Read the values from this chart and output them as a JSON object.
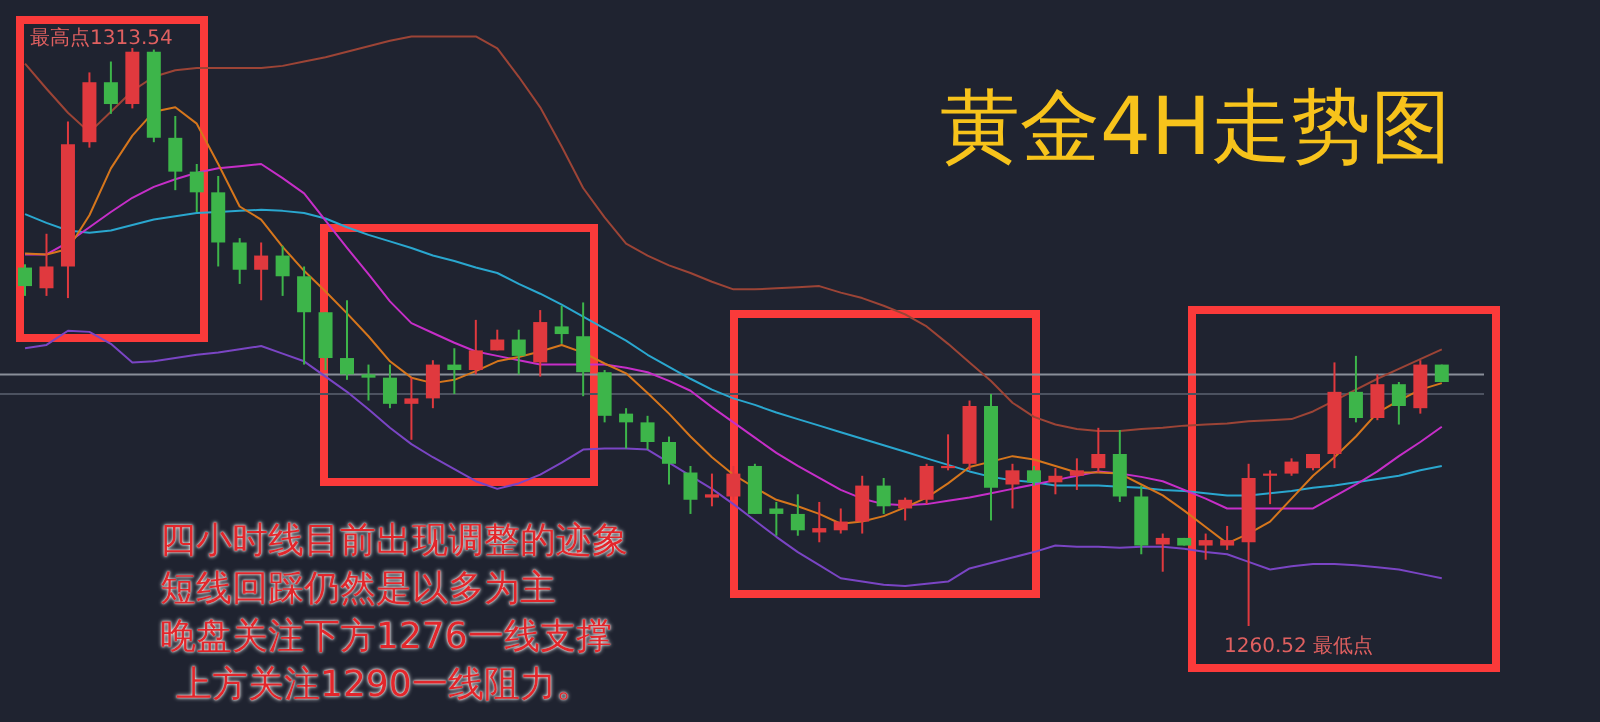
{
  "chart_data": {
    "type": "candlestick",
    "title": "黄金4H走势图",
    "categories": [
      null,
      null,
      null,
      null,
      null,
      null,
      null,
      null,
      null,
      null,
      null,
      null,
      null,
      null,
      null,
      null,
      null,
      null,
      null,
      null,
      null,
      null,
      null,
      null,
      null,
      null,
      null,
      null,
      null,
      null,
      null,
      null,
      null,
      null,
      null,
      null,
      null,
      null,
      null,
      null,
      null,
      null,
      null,
      null,
      null,
      null,
      null,
      null,
      null,
      null,
      null,
      null,
      null,
      null,
      null,
      null,
      null,
      null,
      null,
      null,
      null,
      null,
      null,
      null,
      null,
      null,
      null
    ],
    "tick_labels": false,
    "ohlc": [
      [
        1293.4,
        1293.7,
        1290.8,
        1291.7
      ],
      [
        1291.5,
        1296.5,
        1290.8,
        1293.5
      ],
      [
        1293.5,
        1306.8,
        1290.6,
        1304.7
      ],
      [
        1304.9,
        1311.3,
        1304.4,
        1310.4
      ],
      [
        1310.4,
        1312.3,
        1307.5,
        1308.4
      ],
      [
        1308.4,
        1313.54,
        1308.0,
        1313.2
      ],
      [
        1313.2,
        1313.4,
        1304.9,
        1305.3
      ],
      [
        1305.3,
        1307.3,
        1300.5,
        1302.2
      ],
      [
        1302.2,
        1302.9,
        1298.5,
        1300.3
      ],
      [
        1300.3,
        1301.8,
        1293.5,
        1295.7
      ],
      [
        1295.7,
        1296.1,
        1291.9,
        1293.2
      ],
      [
        1293.2,
        1295.7,
        1290.4,
        1294.5
      ],
      [
        1294.5,
        1295.4,
        1290.8,
        1292.6
      ],
      [
        1292.6,
        1293.5,
        1284.5,
        1289.3
      ],
      [
        1289.3,
        1289.3,
        1284.0,
        1285.1
      ],
      [
        1285.1,
        1290.4,
        1283.1,
        1283.6
      ],
      [
        1283.6,
        1284.5,
        1281.2,
        1283.3
      ],
      [
        1283.3,
        1284.5,
        1280.5,
        1280.9
      ],
      [
        1280.9,
        1283.3,
        1277.6,
        1281.4
      ],
      [
        1281.4,
        1284.9,
        1280.5,
        1284.5
      ],
      [
        1284.5,
        1286.0,
        1281.8,
        1284.0
      ],
      [
        1284.0,
        1288.6,
        1283.6,
        1285.8
      ],
      [
        1285.8,
        1287.7,
        1285.8,
        1286.8
      ],
      [
        1286.8,
        1287.7,
        1283.6,
        1285.3
      ],
      [
        1284.7,
        1289.5,
        1283.4,
        1288.4
      ],
      [
        1288.0,
        1289.9,
        1286.4,
        1287.3
      ],
      [
        1287.1,
        1290.2,
        1281.6,
        1283.8
      ],
      [
        1283.8,
        1284.0,
        1279.2,
        1279.8
      ],
      [
        1280.0,
        1280.5,
        1276.8,
        1279.2
      ],
      [
        1279.2,
        1279.8,
        1276.7,
        1277.4
      ],
      [
        1277.4,
        1277.9,
        1273.5,
        1275.4
      ],
      [
        1274.6,
        1275.2,
        1270.8,
        1272.1
      ],
      [
        1272.3,
        1274.5,
        1271.5,
        1272.6
      ],
      [
        1272.4,
        1275.2,
        1272.1,
        1274.5
      ],
      [
        1275.2,
        1275.4,
        1270.8,
        1270.8
      ],
      [
        1271.3,
        1271.9,
        1268.8,
        1270.8
      ],
      [
        1270.8,
        1272.6,
        1268.8,
        1269.3
      ],
      [
        1269.1,
        1271.9,
        1268.2,
        1269.5
      ],
      [
        1269.3,
        1271.3,
        1269.0,
        1270.1
      ],
      [
        1270.1,
        1274.3,
        1269.0,
        1273.4
      ],
      [
        1273.4,
        1274.1,
        1270.8,
        1271.5
      ],
      [
        1271.3,
        1272.3,
        1270.2,
        1272.1
      ],
      [
        1272.1,
        1275.4,
        1271.7,
        1275.2
      ],
      [
        1275.0,
        1278.1,
        1274.8,
        1275.2
      ],
      [
        1275.4,
        1281.2,
        1274.8,
        1280.7
      ],
      [
        1280.7,
        1281.8,
        1270.2,
        1273.2
      ],
      [
        1273.5,
        1275.4,
        1271.3,
        1274.8
      ],
      [
        1274.8,
        1275.2,
        1273.4,
        1273.7
      ],
      [
        1273.7,
        1275.0,
        1272.6,
        1274.3
      ],
      [
        1274.3,
        1275.9,
        1273.0,
        1274.8
      ],
      [
        1275.0,
        1278.7,
        1274.6,
        1276.3
      ],
      [
        1276.3,
        1278.5,
        1271.9,
        1272.4
      ],
      [
        1272.4,
        1273.4,
        1267.1,
        1267.9
      ],
      [
        1268.0,
        1269.0,
        1265.5,
        1268.6
      ],
      [
        1268.6,
        1268.6,
        1267.9,
        1267.9
      ],
      [
        1267.9,
        1269.0,
        1266.6,
        1268.4
      ],
      [
        1267.9,
        1269.7,
        1267.5,
        1268.4
      ],
      [
        1268.2,
        1275.4,
        1260.52,
        1274.1
      ],
      [
        1274.3,
        1274.8,
        1271.7,
        1274.5
      ],
      [
        1274.5,
        1275.9,
        1274.3,
        1275.6
      ],
      [
        1275.0,
        1276.3,
        1274.8,
        1276.3
      ],
      [
        1276.3,
        1284.7,
        1275.0,
        1282.0
      ],
      [
        1282.0,
        1285.3,
        1279.2,
        1279.6
      ],
      [
        1279.6,
        1283.6,
        1279.4,
        1282.7
      ],
      [
        1282.7,
        1282.9,
        1279.0,
        1280.7
      ],
      [
        1280.5,
        1284.9,
        1280.0,
        1284.5
      ],
      [
        1284.5,
        1284.5,
        1282.9,
        1282.9
      ]
    ],
    "colors": [
      "#3db54a",
      "#e0393e",
      "#e0393e",
      "#e0393e",
      "#3db54a",
      "#e0393e",
      "#3db54a",
      "#3db54a",
      "#3db54a",
      "#3db54a",
      "#3db54a",
      "#e0393e",
      "#3db54a",
      "#3db54a",
      "#3db54a",
      "#3db54a",
      "#3db54a",
      "#3db54a",
      "#e0393e",
      "#e0393e",
      "#3db54a",
      "#e0393e",
      "#e0393e",
      "#3db54a",
      "#e0393e",
      "#3db54a",
      "#3db54a",
      "#3db54a",
      "#3db54a",
      "#3db54a",
      "#3db54a",
      "#3db54a",
      "#e0393e",
      "#e0393e",
      "#3db54a",
      "#3db54a",
      "#3db54a",
      "#e0393e",
      "#e0393e",
      "#e0393e",
      "#3db54a",
      "#e0393e",
      "#e0393e",
      "#e0393e",
      "#e0393e",
      "#3db54a",
      "#e0393e",
      "#3db54a",
      "#e0393e",
      "#e0393e",
      "#e0393e",
      "#3db54a",
      "#3db54a",
      "#e0393e",
      "#3db54a",
      "#e0393e",
      "#e0393e",
      "#e0393e",
      "#e0393e",
      "#e0393e",
      "#e0393e",
      "#e0393e",
      "#3db54a",
      "#e0393e",
      "#3db54a",
      "#e0393e",
      "#3db54a"
    ],
    "series": [
      {
        "type": "line",
        "color": "#9c4436",
        "values": [
          1312.1,
          1309.8,
          1307.6,
          1305.8,
          1307.7,
          1309.6,
          1310.9,
          1311.5,
          1311.7,
          1311.7,
          1311.7,
          1311.7,
          1311.9,
          1312.3,
          1312.7,
          1313.2,
          1313.7,
          1314.2,
          1314.6,
          1314.6,
          1314.6,
          1314.6,
          1313.5,
          1310.9,
          1308.1,
          1304.5,
          1300.7,
          1298.0,
          1295.6,
          1294.5,
          1293.6,
          1292.9,
          1292.1,
          1291.4,
          1291.4,
          1291.5,
          1291.6,
          1291.7,
          1291.1,
          1290.6,
          1289.9,
          1289.1,
          1288.0,
          1286.4,
          1284.7,
          1283.0,
          1281.0,
          1279.7,
          1279.0,
          1278.6,
          1278.4,
          1278.4,
          1278.6,
          1278.7,
          1278.9,
          1279.0,
          1279.1,
          1279.3,
          1279.4,
          1279.5,
          1280.2,
          1281.2,
          1282.2,
          1283.2,
          1284.1,
          1285.0,
          1285.9
        ]
      },
      {
        "type": "line",
        "color": "#2aa7cf",
        "values": [
          1298.3,
          1297.5,
          1296.8,
          1296.6,
          1296.8,
          1297.3,
          1297.8,
          1298.1,
          1298.4,
          1298.5,
          1298.6,
          1298.7,
          1298.6,
          1298.4,
          1297.9,
          1297.1,
          1296.4,
          1295.8,
          1295.2,
          1294.5,
          1294.0,
          1293.4,
          1292.9,
          1291.9,
          1291.0,
          1290.0,
          1288.9,
          1287.8,
          1286.7,
          1285.4,
          1284.3,
          1283.2,
          1282.2,
          1281.4,
          1280.8,
          1280.1,
          1279.5,
          1278.9,
          1278.3,
          1277.7,
          1277.1,
          1276.5,
          1275.9,
          1275.3,
          1274.7,
          1274.2,
          1273.9,
          1273.7,
          1273.4,
          1273.4,
          1273.4,
          1273.3,
          1273.2,
          1273.0,
          1272.9,
          1272.7,
          1272.5,
          1272.5,
          1272.7,
          1272.9,
          1273.2,
          1273.4,
          1273.7,
          1274.0,
          1274.3,
          1274.8,
          1275.2
        ]
      },
      {
        "type": "line",
        "color": "#7a45c4",
        "values": [
          1286.0,
          1286.3,
          1287.6,
          1287.5,
          1286.4,
          1284.7,
          1284.8,
          1285.1,
          1285.4,
          1285.6,
          1285.9,
          1286.2,
          1285.5,
          1284.8,
          1283.4,
          1282.0,
          1280.4,
          1278.7,
          1277.2,
          1276.0,
          1274.9,
          1273.8,
          1273.1,
          1273.6,
          1274.4,
          1275.5,
          1276.7,
          1276.8,
          1276.8,
          1276.7,
          1275.5,
          1274.3,
          1273.1,
          1271.7,
          1270.2,
          1268.7,
          1267.3,
          1266.1,
          1264.9,
          1264.6,
          1264.3,
          1264.2,
          1264.4,
          1264.6,
          1265.8,
          1266.3,
          1266.8,
          1267.3,
          1267.9,
          1267.8,
          1267.8,
          1267.7,
          1267.8,
          1267.8,
          1267.6,
          1267.3,
          1267.1,
          1266.4,
          1265.7,
          1266.0,
          1266.2,
          1266.2,
          1266.1,
          1265.9,
          1265.7,
          1265.3,
          1264.9
        ]
      },
      {
        "type": "line",
        "color": "#c62ec8",
        "values": [
          1294.6,
          1294.6,
          1295.7,
          1297.1,
          1298.5,
          1299.8,
          1300.8,
          1301.5,
          1302.1,
          1302.5,
          1302.7,
          1302.9,
          1301.6,
          1300.2,
          1297.7,
          1295.2,
          1292.8,
          1290.3,
          1288.3,
          1287.4,
          1286.5,
          1285.7,
          1285.3,
          1284.9,
          1284.5,
          1284.5,
          1284.5,
          1284.5,
          1284.2,
          1283.8,
          1283.0,
          1282.1,
          1280.6,
          1279.2,
          1277.8,
          1276.4,
          1275.2,
          1274.1,
          1273.0,
          1272.2,
          1271.7,
          1271.6,
          1271.7,
          1272.0,
          1272.3,
          1272.7,
          1273.1,
          1273.5,
          1273.9,
          1274.3,
          1274.7,
          1274.5,
          1274.2,
          1273.8,
          1273.0,
          1272.2,
          1271.3,
          1271.3,
          1271.3,
          1271.3,
          1271.3,
          1272.4,
          1273.5,
          1274.7,
          1276.1,
          1277.4,
          1278.8
        ]
      },
      {
        "type": "line",
        "color": "#d6761c",
        "values": [
          1294.7,
          1294.6,
          1295.1,
          1298.2,
          1302.5,
          1305.5,
          1307.7,
          1308.1,
          1306.6,
          1302.9,
          1299.0,
          1297.8,
          1295.3,
          1293.1,
          1291.2,
          1289.2,
          1287.1,
          1284.8,
          1283.3,
          1282.8,
          1283.1,
          1283.9,
          1284.8,
          1285.2,
          1285.7,
          1286.3,
          1285.6,
          1284.6,
          1283.7,
          1281.9,
          1280.0,
          1277.9,
          1276.0,
          1274.4,
          1273.2,
          1272.1,
          1271.5,
          1270.8,
          1269.9,
          1270.1,
          1270.6,
          1271.4,
          1272.3,
          1273.6,
          1275.1,
          1275.6,
          1276.1,
          1275.8,
          1275.2,
          1274.6,
          1274.6,
          1274.5,
          1273.5,
          1272.5,
          1271.1,
          1269.6,
          1268.1,
          1269.0,
          1270.1,
          1272.2,
          1274.3,
          1276.0,
          1277.9,
          1280.1,
          1281.2,
          1282.2,
          1282.8
        ]
      }
    ],
    "ref_lines": [
      {
        "axis": "y",
        "value": 1283.6,
        "color": "#8a8f99"
      },
      {
        "axis": "y",
        "value": 1281.8,
        "color": "#4c5260"
      }
    ],
    "annotations": [
      "最高点1313.54",
      "1260.52 最低点",
      "四小时线目前出现调整的迹象",
      "短线回踩仍然是以多为主",
      "晚盘关注下方1276一线支撑",
      "上方关注1290一线阻力。"
    ]
  }
}
